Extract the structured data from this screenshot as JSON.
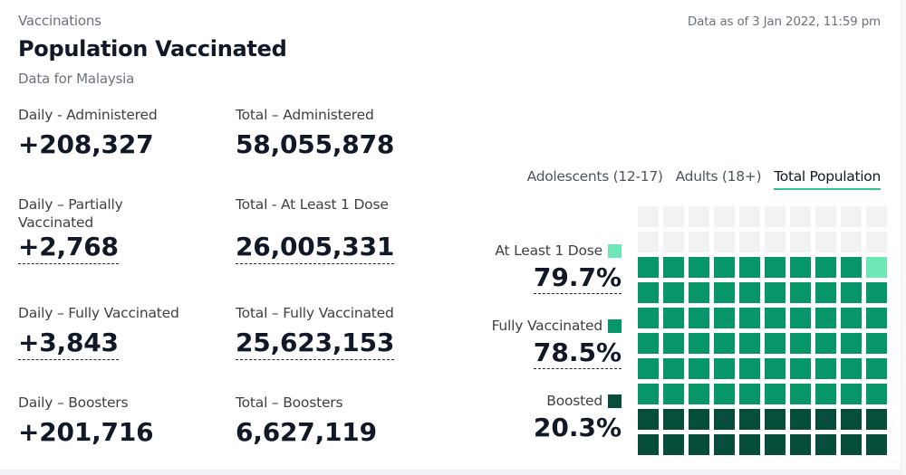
{
  "header": {
    "section": "Vaccinations",
    "title": "Population Vaccinated",
    "subtitle": "Data for Malaysia",
    "data_as_of": "Data as of 3 Jan 2022, 11:59 pm"
  },
  "stats": {
    "daily_administered": {
      "label": "Daily - Administered",
      "value": "+208,327"
    },
    "total_administered": {
      "label": "Total – Administered",
      "value": "58,055,878"
    },
    "daily_partial": {
      "label": "Daily – Partially Vaccinated",
      "value": "+2,768"
    },
    "total_at_least_1": {
      "label": "Total - At Least 1 Dose",
      "value": "26,005,331"
    },
    "daily_full": {
      "label": "Daily – Fully Vaccinated",
      "value": "+3,843"
    },
    "total_full": {
      "label": "Total – Fully Vaccinated",
      "value": "25,623,153"
    },
    "daily_boosters": {
      "label": "Daily – Boosters",
      "value": "+201,716"
    },
    "total_boosters": {
      "label": "Total – Boosters",
      "value": "6,627,119"
    }
  },
  "tabs": [
    {
      "label": "Adolescents (12-17)",
      "active": false
    },
    {
      "label": "Adults (18+)",
      "active": false
    },
    {
      "label": "Total Population",
      "active": true
    }
  ],
  "legend": {
    "at_least_1": {
      "label": "At Least 1 Dose",
      "pct": "79.7%",
      "color": "#6ee7b7"
    },
    "full": {
      "label": "Fully Vaccinated",
      "pct": "78.5%",
      "color": "#079669"
    },
    "boosted": {
      "label": "Boosted",
      "pct": "20.3%",
      "color": "#064e3b"
    }
  },
  "waffle": {
    "total_cells": 100,
    "at_least_1_pct": 79.7,
    "full_pct": 78.5,
    "boosted_pct": 20.3,
    "empty_color": "#f1f2f4"
  }
}
